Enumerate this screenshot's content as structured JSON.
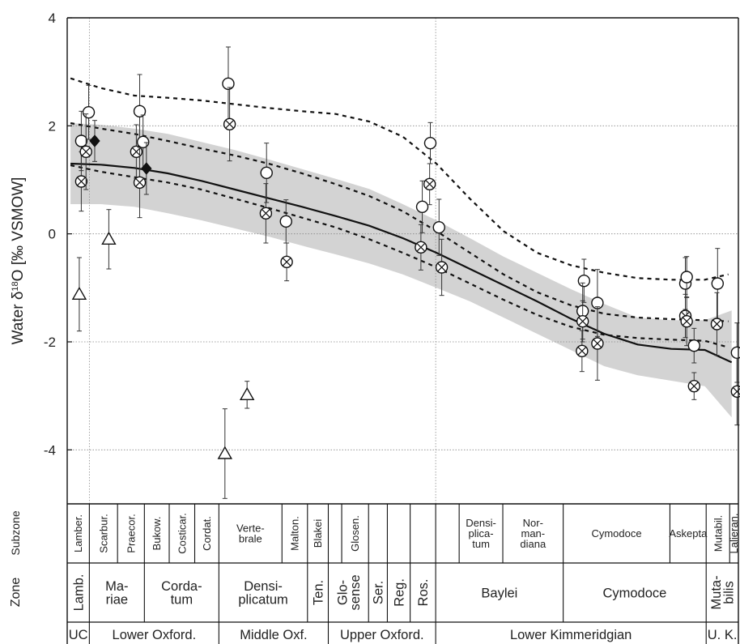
{
  "chart_data": {
    "type": "scatter",
    "ylabel_parts": [
      "Water δ",
      "18",
      "O [‰ VSMOW]"
    ],
    "ylim": [
      -5,
      4
    ],
    "yticks": [
      4,
      2,
      0,
      -2,
      -4
    ],
    "grid": true,
    "legend": "none",
    "series": [
      {
        "marker": "circle",
        "points": [
          {
            "x": 0.021,
            "y": 1.72,
            "e": 0.55
          },
          {
            "x": 0.032,
            "y": 2.25,
            "e": 0.5
          },
          {
            "x": 0.108,
            "y": 2.27,
            "e": 0.68
          },
          {
            "x": 0.113,
            "y": 1.7,
            "e": 0.5
          },
          {
            "x": 0.24,
            "y": 2.78,
            "e": 0.68
          },
          {
            "x": 0.297,
            "y": 1.13,
            "e": 0.55
          },
          {
            "x": 0.326,
            "y": 0.23,
            "e": 0.4
          },
          {
            "x": 0.529,
            "y": 0.5,
            "e": 0.48
          },
          {
            "x": 0.541,
            "y": 1.68,
            "e": 0.38
          },
          {
            "x": 0.554,
            "y": 0.12,
            "e": 0.52
          },
          {
            "x": 0.77,
            "y": -0.87,
            "e": 0.4
          },
          {
            "x": 0.768,
            "y": -1.43,
            "e": 0.52
          },
          {
            "x": 0.79,
            "y": -1.28,
            "e": 0.62
          },
          {
            "x": 0.921,
            "y": -0.92,
            "e": 0.48
          },
          {
            "x": 0.923,
            "y": -0.8,
            "e": 0.38
          },
          {
            "x": 0.934,
            "y": -2.07,
            "e": 0.32
          },
          {
            "x": 0.969,
            "y": -0.92,
            "e": 0.65
          },
          {
            "x": 0.998,
            "y": -2.2,
            "e": 0.55
          }
        ]
      },
      {
        "marker": "circle-cross",
        "points": [
          {
            "x": 0.021,
            "y": 0.97,
            "e": 0.55
          },
          {
            "x": 0.028,
            "y": 1.52,
            "e": 0.7
          },
          {
            "x": 0.103,
            "y": 1.52,
            "e": 0.5
          },
          {
            "x": 0.108,
            "y": 0.95,
            "e": 0.65
          },
          {
            "x": 0.242,
            "y": 2.03,
            "e": 0.68
          },
          {
            "x": 0.296,
            "y": 0.38,
            "e": 0.55
          },
          {
            "x": 0.327,
            "y": -0.52,
            "e": 0.35
          },
          {
            "x": 0.527,
            "y": -0.25,
            "e": 0.42
          },
          {
            "x": 0.54,
            "y": 0.92,
            "e": 0.38
          },
          {
            "x": 0.558,
            "y": -0.62,
            "e": 0.52
          },
          {
            "x": 0.768,
            "y": -1.62,
            "e": 0.38
          },
          {
            "x": 0.767,
            "y": -2.17,
            "e": 0.38
          },
          {
            "x": 0.79,
            "y": -2.03,
            "e": 0.68
          },
          {
            "x": 0.921,
            "y": -1.52,
            "e": 0.4
          },
          {
            "x": 0.923,
            "y": -1.62,
            "e": 0.45
          },
          {
            "x": 0.934,
            "y": -2.82,
            "e": 0.25
          },
          {
            "x": 0.968,
            "y": -1.67,
            "e": 0.58
          },
          {
            "x": 0.998,
            "y": -2.92,
            "e": 0.62
          }
        ]
      },
      {
        "marker": "triangle",
        "points": [
          {
            "x": 0.018,
            "y": -1.12,
            "e": 0.68
          },
          {
            "x": 0.062,
            "y": -0.1,
            "e": 0.55
          },
          {
            "x": 0.235,
            "y": -4.07,
            "e": 0.83
          },
          {
            "x": 0.268,
            "y": -2.98,
            "e": 0.25
          }
        ]
      },
      {
        "marker": "diamond",
        "points": [
          {
            "x": 0.041,
            "y": 1.72,
            "e": 0.38
          },
          {
            "x": 0.118,
            "y": 1.21,
            "e": 0.48
          }
        ]
      }
    ],
    "curve_mean": [
      [
        0.005,
        1.3
      ],
      [
        0.05,
        1.28
      ],
      [
        0.1,
        1.22
      ],
      [
        0.15,
        1.12
      ],
      [
        0.2,
        0.98
      ],
      [
        0.25,
        0.82
      ],
      [
        0.3,
        0.66
      ],
      [
        0.35,
        0.5
      ],
      [
        0.4,
        0.33
      ],
      [
        0.45,
        0.15
      ],
      [
        0.5,
        -0.08
      ],
      [
        0.55,
        -0.35
      ],
      [
        0.6,
        -0.65
      ],
      [
        0.65,
        -0.95
      ],
      [
        0.7,
        -1.25
      ],
      [
        0.75,
        -1.57
      ],
      [
        0.8,
        -1.85
      ],
      [
        0.85,
        -2.05
      ],
      [
        0.9,
        -2.13
      ],
      [
        0.95,
        -2.15
      ],
      [
        0.99,
        -2.38
      ]
    ],
    "band_upper": [
      [
        0.005,
        2.05
      ],
      [
        0.05,
        2.02
      ],
      [
        0.1,
        1.95
      ],
      [
        0.15,
        1.85
      ],
      [
        0.2,
        1.7
      ],
      [
        0.25,
        1.55
      ],
      [
        0.3,
        1.38
      ],
      [
        0.35,
        1.2
      ],
      [
        0.4,
        1.02
      ],
      [
        0.45,
        0.83
      ],
      [
        0.5,
        0.55
      ],
      [
        0.55,
        0.25
      ],
      [
        0.6,
        -0.08
      ],
      [
        0.65,
        -0.42
      ],
      [
        0.7,
        -0.72
      ],
      [
        0.75,
        -1.02
      ],
      [
        0.8,
        -1.3
      ],
      [
        0.85,
        -1.55
      ],
      [
        0.9,
        -1.6
      ],
      [
        0.95,
        -1.6
      ],
      [
        0.99,
        -1.42
      ]
    ],
    "band_lower": [
      [
        0.005,
        0.55
      ],
      [
        0.05,
        0.55
      ],
      [
        0.1,
        0.5
      ],
      [
        0.15,
        0.38
      ],
      [
        0.2,
        0.25
      ],
      [
        0.25,
        0.1
      ],
      [
        0.3,
        -0.05
      ],
      [
        0.35,
        -0.22
      ],
      [
        0.4,
        -0.38
      ],
      [
        0.45,
        -0.55
      ],
      [
        0.5,
        -0.75
      ],
      [
        0.55,
        -1.0
      ],
      [
        0.6,
        -1.25
      ],
      [
        0.65,
        -1.55
      ],
      [
        0.7,
        -1.85
      ],
      [
        0.75,
        -2.15
      ],
      [
        0.8,
        -2.45
      ],
      [
        0.85,
        -2.62
      ],
      [
        0.9,
        -2.72
      ],
      [
        0.95,
        -2.82
      ],
      [
        0.99,
        -3.4
      ]
    ],
    "dashed_upper": [
      [
        0.005,
        2.88
      ],
      [
        0.05,
        2.7
      ],
      [
        0.1,
        2.56
      ],
      [
        0.15,
        2.52
      ],
      [
        0.2,
        2.47
      ],
      [
        0.25,
        2.4
      ],
      [
        0.3,
        2.33
      ],
      [
        0.35,
        2.27
      ],
      [
        0.4,
        2.22
      ],
      [
        0.45,
        2.08
      ],
      [
        0.5,
        1.8
      ],
      [
        0.55,
        1.3
      ],
      [
        0.6,
        0.65
      ],
      [
        0.65,
        0.05
      ],
      [
        0.7,
        -0.35
      ],
      [
        0.75,
        -0.58
      ],
      [
        0.8,
        -0.72
      ],
      [
        0.85,
        -0.82
      ],
      [
        0.9,
        -0.85
      ],
      [
        0.95,
        -0.85
      ],
      [
        0.985,
        -0.75
      ]
    ],
    "dashed_middle": [
      [
        0.005,
        2.05
      ],
      [
        0.05,
        1.95
      ],
      [
        0.1,
        1.85
      ],
      [
        0.15,
        1.72
      ],
      [
        0.2,
        1.58
      ],
      [
        0.25,
        1.45
      ],
      [
        0.3,
        1.3
      ],
      [
        0.35,
        1.12
      ],
      [
        0.4,
        0.92
      ],
      [
        0.45,
        0.7
      ],
      [
        0.5,
        0.42
      ],
      [
        0.55,
        0.05
      ],
      [
        0.6,
        -0.35
      ],
      [
        0.65,
        -0.75
      ],
      [
        0.7,
        -1.08
      ],
      [
        0.75,
        -1.32
      ],
      [
        0.8,
        -1.48
      ],
      [
        0.85,
        -1.55
      ],
      [
        0.9,
        -1.58
      ],
      [
        0.95,
        -1.6
      ],
      [
        0.985,
        -1.62
      ]
    ],
    "dashed_lower": [
      [
        0.005,
        1.27
      ],
      [
        0.05,
        1.15
      ],
      [
        0.1,
        1.05
      ],
      [
        0.15,
        0.95
      ],
      [
        0.2,
        0.82
      ],
      [
        0.25,
        0.65
      ],
      [
        0.3,
        0.48
      ],
      [
        0.35,
        0.3
      ],
      [
        0.4,
        0.12
      ],
      [
        0.45,
        -0.1
      ],
      [
        0.5,
        -0.35
      ],
      [
        0.55,
        -0.62
      ],
      [
        0.6,
        -0.92
      ],
      [
        0.65,
        -1.22
      ],
      [
        0.7,
        -1.5
      ],
      [
        0.75,
        -1.72
      ],
      [
        0.8,
        -1.87
      ],
      [
        0.85,
        -1.93
      ],
      [
        0.9,
        -1.96
      ],
      [
        0.95,
        -1.98
      ],
      [
        0.985,
        -2.1
      ]
    ],
    "subzones": [
      {
        "label": [
          "Lamber."
        ],
        "from": 0.0,
        "to": 0.033
      },
      {
        "label": [
          "Scarbur."
        ],
        "from": 0.033,
        "to": 0.075
      },
      {
        "label": [
          "Praecor."
        ],
        "from": 0.075,
        "to": 0.115
      },
      {
        "label": [
          "Bukow."
        ],
        "from": 0.115,
        "to": 0.152
      },
      {
        "label": [
          "Costicar."
        ],
        "from": 0.152,
        "to": 0.19
      },
      {
        "label": [
          "Cordat."
        ],
        "from": 0.19,
        "to": 0.226
      },
      {
        "label": [
          "Verte-",
          "brale"
        ],
        "from": 0.226,
        "to": 0.32,
        "horizontal": true
      },
      {
        "label": [
          "Malton."
        ],
        "from": 0.32,
        "to": 0.358
      },
      {
        "label": [
          "Blakei"
        ],
        "from": 0.358,
        "to": 0.389
      },
      {
        "label": [
          ""
        ],
        "from": 0.389,
        "to": 0.409
      },
      {
        "label": [
          "Glosen."
        ],
        "from": 0.409,
        "to": 0.449
      },
      {
        "label": [
          ""
        ],
        "from": 0.449,
        "to": 0.477
      },
      {
        "label": [
          ""
        ],
        "from": 0.477,
        "to": 0.511
      },
      {
        "label": [
          ""
        ],
        "from": 0.511,
        "to": 0.549
      },
      {
        "label": [
          ""
        ],
        "from": 0.549,
        "to": 0.584
      },
      {
        "label": [
          "Densi-",
          "plica-",
          "tum"
        ],
        "from": 0.584,
        "to": 0.649,
        "horizontal": true
      },
      {
        "label": [
          "Nor-",
          "man-",
          "diana"
        ],
        "from": 0.649,
        "to": 0.739,
        "horizontal": true
      },
      {
        "label": [
          "Cymodoce"
        ],
        "from": 0.739,
        "to": 0.898,
        "horizontal": true
      },
      {
        "label": [
          "Askepta"
        ],
        "from": 0.898,
        "to": 0.952,
        "horizontal": true
      },
      {
        "label": [
          "Mutabil."
        ],
        "from": 0.952,
        "to": 0.987
      },
      {
        "label": [
          "Lalieran."
        ],
        "from": 0.987,
        "to": 1.0
      }
    ],
    "zones": [
      {
        "label": [
          "Lamb."
        ],
        "from": 0.0,
        "to": 0.033,
        "vertical": true
      },
      {
        "label": [
          "Ma-",
          "riae"
        ],
        "from": 0.033,
        "to": 0.115
      },
      {
        "label": [
          "Corda-",
          "tum"
        ],
        "from": 0.115,
        "to": 0.226
      },
      {
        "label": [
          "Densi-",
          "plicatum"
        ],
        "from": 0.226,
        "to": 0.358
      },
      {
        "label": [
          "Ten."
        ],
        "from": 0.358,
        "to": 0.389,
        "vertical": true
      },
      {
        "label": [
          "Glo-",
          "sense"
        ],
        "from": 0.389,
        "to": 0.449,
        "vertical": true
      },
      {
        "label": [
          "Ser."
        ],
        "from": 0.449,
        "to": 0.477,
        "vertical": true
      },
      {
        "label": [
          "Reg."
        ],
        "from": 0.477,
        "to": 0.511,
        "vertical": true
      },
      {
        "label": [
          "Ros."
        ],
        "from": 0.511,
        "to": 0.549,
        "vertical": true
      },
      {
        "label": [
          "Baylei"
        ],
        "from": 0.549,
        "to": 0.739
      },
      {
        "label": [
          "Cymodoce"
        ],
        "from": 0.739,
        "to": 0.952
      },
      {
        "label": [
          "Muta-",
          "bilis"
        ],
        "from": 0.952,
        "to": 1.0,
        "vertical": true
      }
    ],
    "stages": [
      {
        "label": "UC",
        "from": 0.0,
        "to": 0.033
      },
      {
        "label": "Lower Oxford.",
        "from": 0.033,
        "to": 0.226
      },
      {
        "label": "Middle Oxf.",
        "from": 0.226,
        "to": 0.389
      },
      {
        "label": "Upper Oxford.",
        "from": 0.389,
        "to": 0.549
      },
      {
        "label": "Lower Kimmeridgian",
        "from": 0.549,
        "to": 0.952
      },
      {
        "label": "U. K.",
        "from": 0.952,
        "to": 1.0
      }
    ],
    "row_labels": {
      "subzone": "Subzone",
      "zone": "Zone"
    },
    "guides": [
      0.033,
      0.549
    ]
  }
}
